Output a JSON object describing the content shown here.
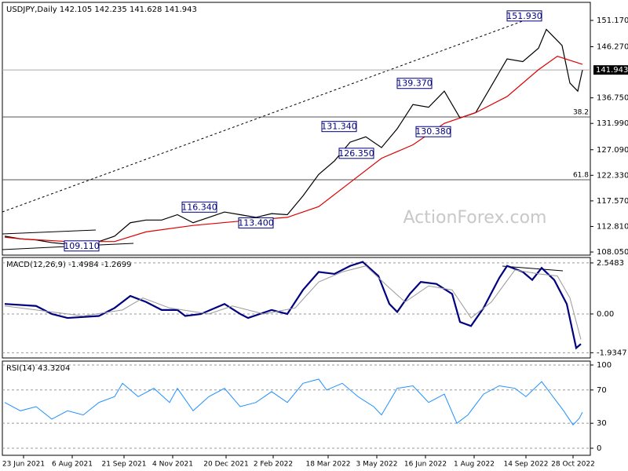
{
  "chart_data": [
    {
      "type": "line",
      "title": "USDJPY,Daily  142.105 142.235 141.628 141.943",
      "xlim": [
        -1.5,
        373
      ],
      "xticks": [
        {
          "value": 12,
          "label": "23 Jun 2021"
        },
        {
          "value": 43,
          "label": "6 Aug 2021"
        },
        {
          "value": 76,
          "label": "21 Sep 2021"
        },
        {
          "value": 107,
          "label": "4 Nov 2021"
        },
        {
          "value": 141,
          "label": "20 Dec 2021"
        },
        {
          "value": 171,
          "label": "2 Feb 2022"
        },
        {
          "value": 206,
          "label": "18 Mar 2022"
        },
        {
          "value": 237,
          "label": "3 May 2022"
        },
        {
          "value": 268,
          "label": "16 Jun 2022"
        },
        {
          "value": 299,
          "label": "1 Aug 2022"
        },
        {
          "value": 332,
          "label": "14 Sep 2022"
        },
        {
          "value": 362,
          "label": "28 Oct 2022"
        }
      ],
      "ylim": [
        107.47,
        154.53
      ],
      "yticks": [
        {
          "value": 151.17,
          "label": "151.170"
        },
        {
          "value": 146.27,
          "label": "146.270"
        },
        {
          "value": 136.75,
          "label": "136.750"
        },
        {
          "value": 131.99,
          "label": "131.990"
        },
        {
          "value": 127.09,
          "label": "127.090"
        },
        {
          "value": 122.33,
          "label": "122.330"
        },
        {
          "value": 117.57,
          "label": "117.570"
        },
        {
          "value": 112.81,
          "label": "112.810"
        },
        {
          "value": 108.05,
          "label": "108.050"
        }
      ],
      "last_price": 141.943,
      "hlines": [
        {
          "value": 133.2,
          "label": "38.2"
        },
        {
          "value": 121.5,
          "label": "61.8"
        }
      ],
      "annotations": [
        {
          "text": "151.930",
          "x": 331,
          "value": 151.93
        },
        {
          "text": "139.370",
          "x": 261,
          "value": 139.37
        },
        {
          "text": "131.340",
          "x": 213,
          "value": 131.34
        },
        {
          "text": "126.350",
          "x": 224,
          "value": 126.35
        },
        {
          "text": "130.380",
          "x": 273,
          "value": 130.38
        },
        {
          "text": "116.340",
          "x": 124,
          "value": 116.34
        },
        {
          "text": "113.400",
          "x": 160,
          "value": 113.4
        },
        {
          "text": "109.110",
          "x": 49,
          "value": 109.11
        }
      ],
      "watermark": "ActionForex.com",
      "series": [
        {
          "color": "#000000",
          "x": [
            0,
            10,
            20,
            30,
            40,
            50,
            60,
            70,
            80,
            90,
            100,
            110,
            120,
            130,
            140,
            150,
            160,
            170,
            180,
            190,
            200,
            210,
            220,
            230,
            240,
            250,
            260,
            270,
            280,
            290,
            300,
            310,
            320,
            330,
            340,
            345,
            350,
            355,
            360,
            365,
            368
          ],
          "values": [
            111.0,
            110.5,
            110.3,
            109.8,
            109.5,
            109.8,
            110.0,
            111.0,
            113.5,
            114.0,
            114.0,
            115.0,
            113.5,
            114.5,
            115.5,
            115.0,
            114.5,
            115.2,
            115.0,
            118.5,
            122.5,
            125.0,
            128.5,
            129.5,
            127.5,
            131.0,
            135.5,
            135.0,
            138.0,
            133.0,
            134.0,
            139.0,
            144.0,
            143.5,
            146.0,
            149.5,
            148.0,
            146.5,
            139.5,
            138.0,
            141.943
          ]
        },
        {
          "color": "#dd0000",
          "x": [
            0,
            10,
            40,
            70,
            90,
            120,
            150,
            180,
            200,
            220,
            240,
            260,
            280,
            300,
            320,
            340,
            352,
            368
          ],
          "values": [
            110.8,
            110.5,
            110.0,
            110.0,
            111.8,
            113.0,
            113.8,
            114.5,
            116.5,
            121.0,
            125.5,
            128.0,
            132.0,
            134.0,
            137.0,
            142.0,
            144.5,
            143.0
          ]
        }
      ]
    },
    {
      "type": "line",
      "title": "MACD(12,26,9) -1.4984 -1.2699",
      "ylim": [
        -2.196,
        2.82
      ],
      "yticks": [
        2.5483,
        {
          "value": 0,
          "label": "0.00"
        },
        -1.9347
      ],
      "grid": true,
      "series": [
        {
          "color": "#000080",
          "width": 2.2,
          "x": [
            0,
            20,
            30,
            40,
            60,
            70,
            80,
            90,
            100,
            110,
            115,
            125,
            140,
            150,
            155,
            170,
            180,
            190,
            200,
            210,
            220,
            228,
            238,
            245,
            250,
            258,
            265,
            275,
            285,
            290,
            297,
            305,
            315,
            320,
            330,
            336,
            342,
            350,
            358,
            364,
            367
          ],
          "values": [
            0.5,
            0.4,
            0.0,
            -0.2,
            -0.1,
            0.3,
            0.9,
            0.6,
            0.2,
            0.2,
            -0.1,
            0.0,
            0.5,
            0.0,
            -0.2,
            0.2,
            0.0,
            1.2,
            2.1,
            2.0,
            2.4,
            2.6,
            1.9,
            0.5,
            0.1,
            1.0,
            1.6,
            1.5,
            1.0,
            -0.4,
            -0.6,
            0.3,
            1.8,
            2.4,
            2.1,
            1.7,
            2.3,
            1.7,
            0.5,
            -1.7,
            -1.4984
          ]
        },
        {
          "color": "#999999",
          "width": 1,
          "x": [
            0,
            30,
            50,
            75,
            88,
            105,
            130,
            145,
            165,
            185,
            200,
            215,
            230,
            245,
            255,
            270,
            285,
            297,
            310,
            325,
            340,
            352,
            360,
            367
          ],
          "values": [
            0.4,
            0.1,
            -0.1,
            0.2,
            0.8,
            0.3,
            0.0,
            0.4,
            0.0,
            0.3,
            1.6,
            2.1,
            2.4,
            1.3,
            0.6,
            1.4,
            1.2,
            -0.2,
            0.6,
            2.2,
            2.0,
            1.9,
            0.8,
            -1.2699
          ]
        }
      ]
    },
    {
      "type": "line",
      "title": "RSI(14) 43.3204",
      "ylim": [
        -8.5,
        104.7
      ],
      "yticks": [
        100,
        70,
        30,
        0
      ],
      "grid": true,
      "series": [
        {
          "color": "#1e90ff",
          "width": 1,
          "x": [
            0,
            10,
            20,
            30,
            40,
            50,
            60,
            70,
            75,
            85,
            95,
            105,
            110,
            120,
            130,
            140,
            150,
            160,
            170,
            180,
            190,
            200,
            205,
            215,
            225,
            235,
            240,
            250,
            260,
            270,
            280,
            288,
            295,
            305,
            315,
            325,
            332,
            342,
            350,
            356,
            362,
            366,
            368
          ],
          "values": [
            55,
            45,
            50,
            35,
            45,
            40,
            55,
            62,
            78,
            62,
            72,
            55,
            72,
            45,
            62,
            72,
            50,
            55,
            68,
            55,
            78,
            83,
            70,
            78,
            62,
            50,
            40,
            72,
            75,
            55,
            65,
            30,
            40,
            65,
            75,
            72,
            62,
            80,
            60,
            45,
            28,
            36,
            43.3204
          ]
        }
      ]
    }
  ]
}
